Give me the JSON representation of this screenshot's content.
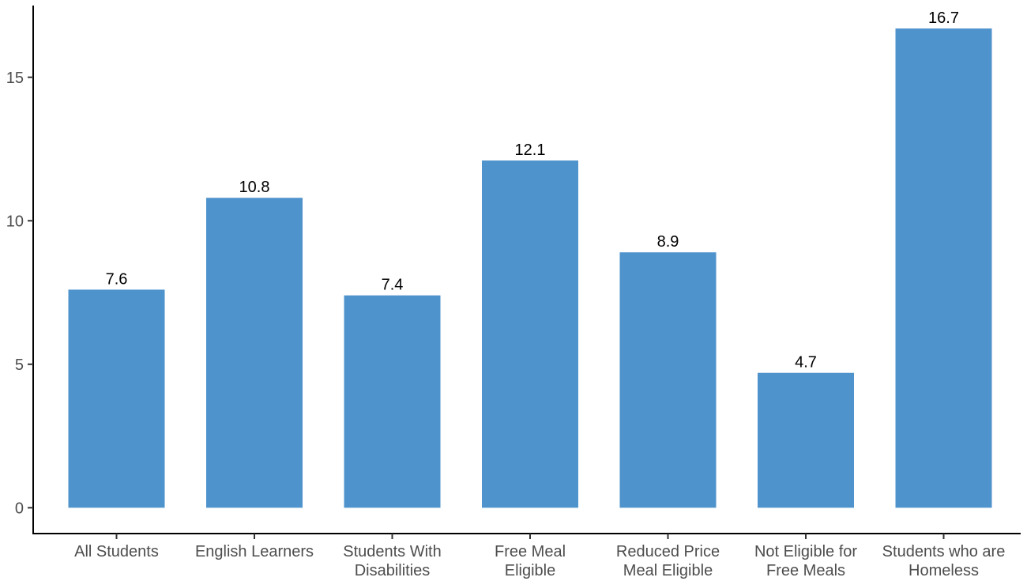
{
  "chart_data": {
    "type": "bar",
    "title": "",
    "xlabel": "",
    "ylabel": "",
    "categories": [
      [
        "All Students"
      ],
      [
        "English Learners"
      ],
      [
        "Students With",
        "Disabilities"
      ],
      [
        "Free Meal",
        "Eligible"
      ],
      [
        "Reduced Price",
        "Meal Eligible"
      ],
      [
        "Not Eligible for",
        "Free Meals"
      ],
      [
        "Students who are",
        "Homeless"
      ]
    ],
    "values": [
      7.6,
      10.8,
      7.4,
      12.1,
      8.9,
      4.7,
      16.7
    ],
    "data_labels": [
      "7.6",
      "10.8",
      "7.4",
      "12.1",
      "8.9",
      "4.7",
      "16.7"
    ],
    "yticks": [
      0,
      5,
      10,
      15
    ],
    "ylim": [
      -0.9,
      17.5
    ],
    "grid": false,
    "legend": "none",
    "colors": {
      "bar": "#4f93cd",
      "axis": "#000000",
      "tick_text": "#4d4d4d",
      "label_text": "#000000"
    }
  }
}
